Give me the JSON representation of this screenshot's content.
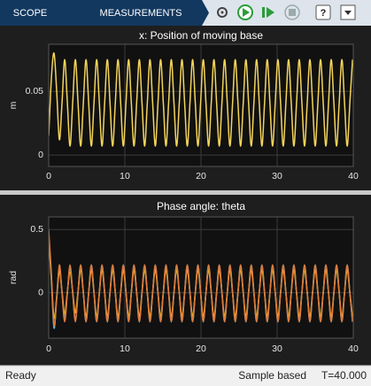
{
  "toolbar": {
    "tabs": [
      "SCOPE",
      "MEASUREMENTS"
    ]
  },
  "chart_data": [
    {
      "type": "line",
      "title": "x: Position of moving base",
      "ylabel": "m",
      "x": [
        0,
        0.35,
        0.7,
        1.05,
        1.4,
        1.75,
        2.1,
        2.45,
        2.8,
        3.15,
        3.5,
        3.85,
        4.2,
        4.55,
        4.9,
        5.25,
        5.6,
        5.95,
        6.3,
        6.65,
        7,
        7.35,
        7.7,
        8.05,
        8.4,
        8.75,
        9.1,
        9.45,
        9.8,
        10.15,
        10.5,
        10.85,
        11.2,
        11.55,
        11.9,
        12.25,
        12.6,
        12.95,
        13.3,
        13.65,
        14,
        14.35,
        14.7,
        15.05,
        15.4,
        15.75,
        16.1,
        16.45,
        16.8,
        17.15,
        17.5,
        17.85,
        18.2,
        18.55,
        18.9,
        19.25,
        19.6,
        19.95,
        20.3,
        20.65,
        21,
        21.35,
        21.7,
        22.05,
        22.4,
        22.75,
        23.1,
        23.45,
        23.8,
        24.15,
        24.5,
        24.85,
        25.2,
        25.55,
        25.9,
        26.25,
        26.6,
        26.95,
        27.3,
        27.65,
        28,
        28.35,
        28.7,
        29.05,
        29.4,
        29.75,
        30.1,
        30.45,
        30.8,
        31.15,
        31.5,
        31.85,
        32.2,
        32.55,
        32.9,
        33.25,
        33.6,
        33.95,
        34.3,
        34.65,
        35,
        35.35,
        35.7,
        36.05,
        36.4,
        36.75,
        37.1,
        37.45,
        37.8,
        38.15,
        38.5,
        38.85,
        39.2,
        39.55,
        39.9
      ],
      "xlim": [
        0,
        40
      ],
      "xticks": [
        0,
        10,
        20,
        30,
        40
      ],
      "ylim": [
        -0.009,
        0.087
      ],
      "yticks": [
        0,
        0.05
      ],
      "grid": true,
      "series": [
        {
          "color": "#f2d35b",
          "values": [
            0.015,
            0.06,
            0.08,
            0.05,
            0.012,
            0.041,
            0.075,
            0.041,
            0.007,
            0.041,
            0.075,
            0.041,
            0.007,
            0.041,
            0.075,
            0.041,
            0.007,
            0.041,
            0.075,
            0.041,
            0.007,
            0.041,
            0.075,
            0.041,
            0.007,
            0.041,
            0.075,
            0.041,
            0.007,
            0.041,
            0.075,
            0.041,
            0.007,
            0.041,
            0.075,
            0.041,
            0.007,
            0.041,
            0.075,
            0.041,
            0.007,
            0.041,
            0.075,
            0.041,
            0.007,
            0.041,
            0.075,
            0.041,
            0.007,
            0.041,
            0.075,
            0.041,
            0.007,
            0.041,
            0.075,
            0.041,
            0.007,
            0.041,
            0.075,
            0.041,
            0.007,
            0.041,
            0.075,
            0.041,
            0.007,
            0.041,
            0.075,
            0.041,
            0.007,
            0.041,
            0.075,
            0.041,
            0.007,
            0.041,
            0.075,
            0.041,
            0.007,
            0.041,
            0.075,
            0.041,
            0.007,
            0.041,
            0.075,
            0.041,
            0.007,
            0.041,
            0.075,
            0.041,
            0.007,
            0.041,
            0.075,
            0.041,
            0.007,
            0.041,
            0.075,
            0.041,
            0.007,
            0.041,
            0.075,
            0.041,
            0.007,
            0.041,
            0.075,
            0.041,
            0.007,
            0.041,
            0.075,
            0.041,
            0.007,
            0.041,
            0.075,
            0.041,
            0.007,
            0.041,
            0.075
          ]
        }
      ]
    },
    {
      "type": "line",
      "title": "Phase angle: theta",
      "ylabel": "rad",
      "x": [
        0,
        0.35,
        0.7,
        1.05,
        1.4,
        1.75,
        2.1,
        2.45,
        2.8,
        3.15,
        3.5,
        3.85,
        4.2,
        4.55,
        4.9,
        5.25,
        5.6,
        5.95,
        6.3,
        6.65,
        7,
        7.35,
        7.7,
        8.05,
        8.4,
        8.75,
        9.1,
        9.45,
        9.8,
        10.15,
        10.5,
        10.85,
        11.2,
        11.55,
        11.9,
        12.25,
        12.6,
        12.95,
        13.3,
        13.65,
        14,
        14.35,
        14.7,
        15.05,
        15.4,
        15.75,
        16.1,
        16.45,
        16.8,
        17.15,
        17.5,
        17.85,
        18.2,
        18.55,
        18.9,
        19.25,
        19.6,
        19.95,
        20.3,
        20.65,
        21,
        21.35,
        21.7,
        22.05,
        22.4,
        22.75,
        23.1,
        23.45,
        23.8,
        24.15,
        24.5,
        24.85,
        25.2,
        25.55,
        25.9,
        26.25,
        26.6,
        26.95,
        27.3,
        27.65,
        28,
        28.35,
        28.7,
        29.05,
        29.4,
        29.75,
        30.1,
        30.45,
        30.8,
        31.15,
        31.5,
        31.85,
        32.2,
        32.55,
        32.9,
        33.25,
        33.6,
        33.95,
        34.3,
        34.65,
        35,
        35.35,
        35.7,
        36.05,
        36.4,
        36.75,
        37.1,
        37.45,
        37.8,
        38.15,
        38.5,
        38.85,
        39.2,
        39.55,
        39.9
      ],
      "xlim": [
        0,
        40
      ],
      "xticks": [
        0,
        10,
        20,
        30,
        40
      ],
      "ylim": [
        -0.36,
        0.6
      ],
      "yticks": [
        0,
        0.5
      ],
      "grid": true,
      "series": [
        {
          "color": "#4dbeee",
          "values": [
            0.42,
            0.1,
            -0.28,
            -0.03,
            0.2,
            0,
            -0.21,
            0,
            0.2,
            0,
            -0.22,
            0,
            0.22,
            0,
            -0.23,
            0,
            0.22,
            0,
            -0.23,
            0,
            0.22,
            0,
            -0.23,
            0,
            0.22,
            0,
            -0.23,
            0,
            0.22,
            0,
            -0.23,
            0,
            0.22,
            0,
            -0.23,
            0,
            0.22,
            0,
            -0.23,
            0,
            0.22,
            0,
            -0.23,
            0,
            0.22,
            0,
            -0.23,
            0,
            0.22,
            0,
            -0.23,
            0,
            0.22,
            0,
            -0.23,
            0,
            0.22,
            0,
            -0.23,
            0,
            0.22,
            0,
            -0.23,
            0,
            0.22,
            0,
            -0.23,
            0,
            0.22,
            0,
            -0.23,
            0,
            0.22,
            0,
            -0.23,
            0,
            0.22,
            0,
            -0.23,
            0,
            0.22,
            0,
            -0.23,
            0,
            0.22,
            0,
            -0.23,
            0,
            0.22,
            0,
            -0.23,
            0,
            0.22,
            0,
            -0.23,
            0,
            0.22,
            0,
            -0.23,
            0,
            0.22,
            0,
            -0.23,
            0,
            0.22,
            0,
            -0.23,
            0,
            0.22,
            0,
            -0.23,
            0,
            0.22,
            0,
            -0.23
          ]
        },
        {
          "color": "#edb120",
          "values": [
            0.45,
            0.12,
            -0.2,
            -0.04,
            0.17,
            0.01,
            -0.17,
            0.01,
            0.16,
            0.01,
            -0.16,
            0.01,
            0.18,
            0,
            -0.19,
            0,
            0.18,
            0,
            -0.19,
            0,
            0.18,
            0,
            -0.19,
            0,
            0.18,
            0,
            -0.19,
            0,
            0.18,
            0,
            -0.19,
            0,
            0.18,
            0,
            -0.19,
            0,
            0.18,
            0,
            -0.19,
            0,
            0.18,
            0,
            -0.19,
            0,
            0.18,
            0,
            -0.19,
            0,
            0.18,
            0,
            -0.19,
            0,
            0.18,
            0,
            -0.19,
            0,
            0.18,
            0,
            -0.19,
            0,
            0.18,
            0,
            -0.19,
            0,
            0.18,
            0,
            -0.19,
            0,
            0.18,
            0,
            -0.19,
            0,
            0.18,
            0,
            -0.19,
            0,
            0.18,
            0,
            -0.19,
            0,
            0.18,
            0,
            -0.19,
            0,
            0.18,
            0,
            -0.19,
            0,
            0.18,
            0,
            -0.19,
            0,
            0.18,
            0,
            -0.19,
            0,
            0.18,
            0,
            -0.19,
            0,
            0.18,
            0,
            -0.19,
            0,
            0.18,
            0,
            -0.19,
            0,
            0.18,
            0,
            -0.19,
            0,
            0.18,
            0,
            -0.19
          ]
        },
        {
          "color": "#de7a3c",
          "values": [
            0.5,
            0.15,
            -0.26,
            -0.05,
            0.22,
            0,
            -0.23,
            0,
            0.22,
            0,
            -0.23,
            0,
            0.22,
            0,
            -0.23,
            0,
            0.22,
            0,
            -0.23,
            0,
            0.22,
            0,
            -0.23,
            0,
            0.22,
            0,
            -0.23,
            0,
            0.22,
            0,
            -0.23,
            0,
            0.22,
            0,
            -0.23,
            0,
            0.22,
            0,
            -0.23,
            0,
            0.22,
            0,
            -0.23,
            0,
            0.22,
            0,
            -0.23,
            0,
            0.22,
            0,
            -0.23,
            0,
            0.22,
            0,
            -0.23,
            0,
            0.22,
            0,
            -0.23,
            0,
            0.22,
            0,
            -0.23,
            0,
            0.22,
            0,
            -0.23,
            0,
            0.22,
            0,
            -0.23,
            0,
            0.22,
            0,
            -0.23,
            0,
            0.22,
            0,
            -0.23,
            0,
            0.22,
            0,
            -0.23,
            0,
            0.22,
            0,
            -0.23,
            0,
            0.22,
            0,
            -0.23,
            0,
            0.22,
            0,
            -0.23,
            0,
            0.22,
            0,
            -0.23,
            0,
            0.22,
            0,
            -0.23,
            0,
            0.22,
            0,
            -0.23,
            0,
            0.22,
            0,
            -0.23,
            0,
            0.22,
            0,
            -0.23
          ]
        }
      ]
    }
  ],
  "status_bar": {
    "status": "Ready",
    "mode": "Sample based",
    "time": "T=40.000"
  }
}
